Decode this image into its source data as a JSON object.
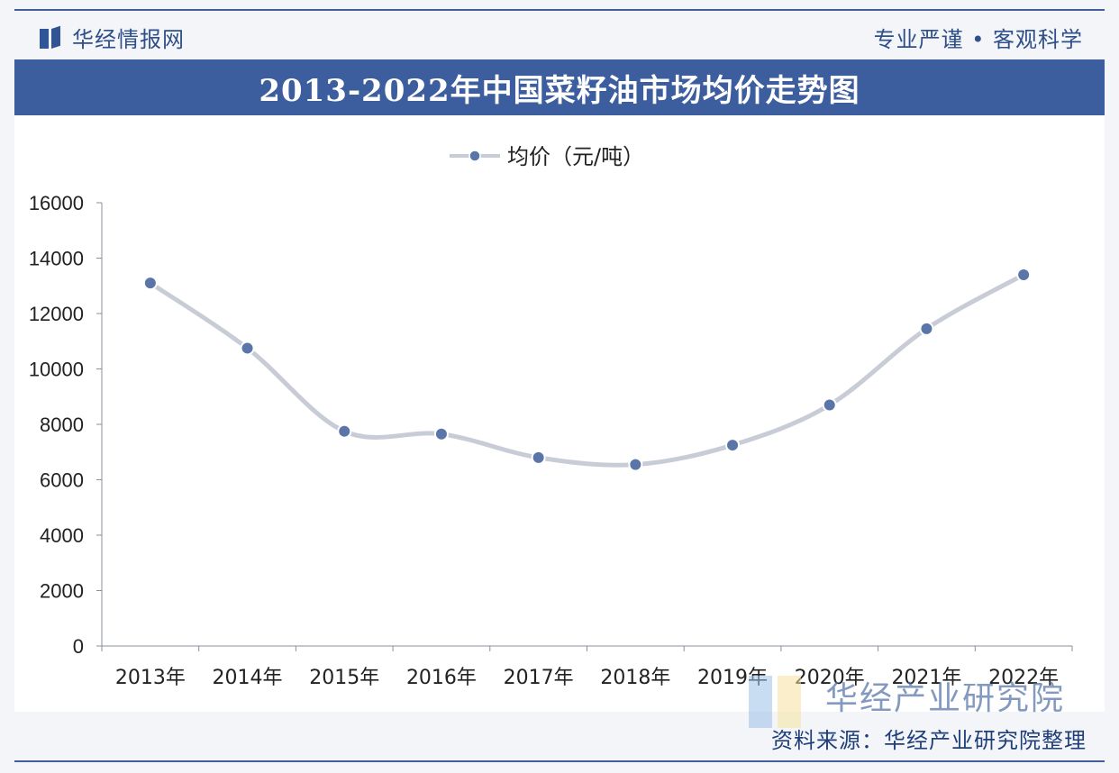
{
  "header": {
    "brand": "华经情报网",
    "slogan": "专业严谨 • 客观科学"
  },
  "chart_data": {
    "type": "line",
    "title": "2013-2022年中国菜籽油市场均价走势图",
    "categories": [
      "2013年",
      "2014年",
      "2015年",
      "2016年",
      "2017年",
      "2018年",
      "2019年",
      "2020年",
      "2021年",
      "2022年"
    ],
    "series": [
      {
        "name": "均价（元/吨）",
        "values": [
          13100,
          10750,
          7750,
          7650,
          6800,
          6550,
          7250,
          8700,
          11450,
          13400
        ],
        "color": "#5a75a8"
      }
    ],
    "yticks": [
      "0",
      "2000",
      "4000",
      "6000",
      "8000",
      "10000",
      "12000",
      "14000",
      "16000"
    ],
    "ylim": [
      0,
      16000
    ],
    "grid": false,
    "legend": "top-center",
    "line_color": "#c8ccd6"
  },
  "footer": {
    "watermark": "华经产业研究院",
    "source": "资料来源：华经产业研究院整理"
  }
}
